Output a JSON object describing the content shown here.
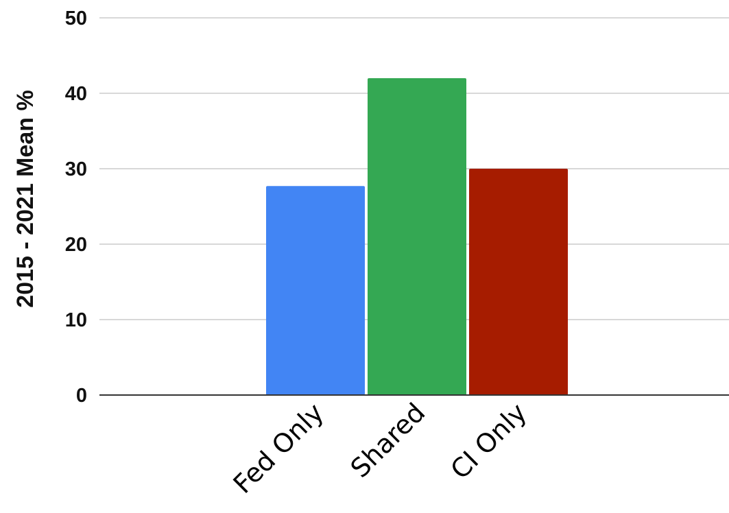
{
  "chart_data": {
    "type": "bar",
    "title": "",
    "xlabel": "",
    "ylabel": "2015 - 2021 Mean %",
    "categories": [
      "Fed Only",
      "Shared",
      "CI Only"
    ],
    "values": [
      27.7,
      42.0,
      30.0
    ],
    "colors": [
      "#4285f4",
      "#34a853",
      "#a61c00"
    ],
    "ylim": [
      0,
      50
    ],
    "yticks": [
      "0",
      "10",
      "20",
      "30",
      "40",
      "50"
    ],
    "grid": true
  }
}
